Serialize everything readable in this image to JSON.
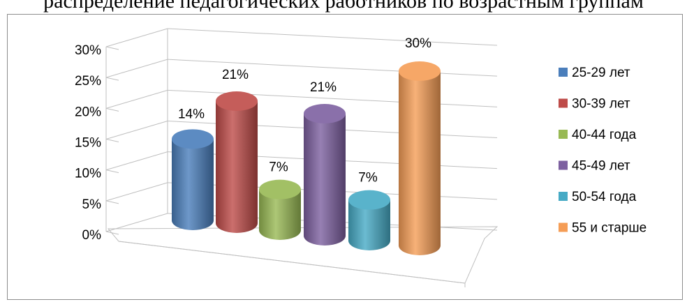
{
  "heading": "распределение педагогических работников по возрастным группам",
  "chart_data": {
    "type": "bar",
    "title": "",
    "xlabel": "",
    "ylabel": "",
    "ylim": [
      0,
      30
    ],
    "yticks": [
      "0%",
      "5%",
      "10%",
      "15%",
      "20%",
      "25%",
      "30%"
    ],
    "categories": [
      "25-29 лет",
      "30-39 лет",
      "40-44 года",
      "45-49 лет",
      "50-54 года",
      "55 и старше"
    ],
    "values": [
      14,
      21,
      7,
      21,
      7,
      30
    ],
    "data_labels": [
      "14%",
      "21%",
      "7%",
      "21%",
      "7%",
      "30%"
    ],
    "colors": [
      "#4a7ebb",
      "#be4b48",
      "#98b954",
      "#7d60a0",
      "#46aac5",
      "#f59d56"
    ],
    "legend_position": "right",
    "grid": true,
    "style": "3d-cylinder"
  }
}
